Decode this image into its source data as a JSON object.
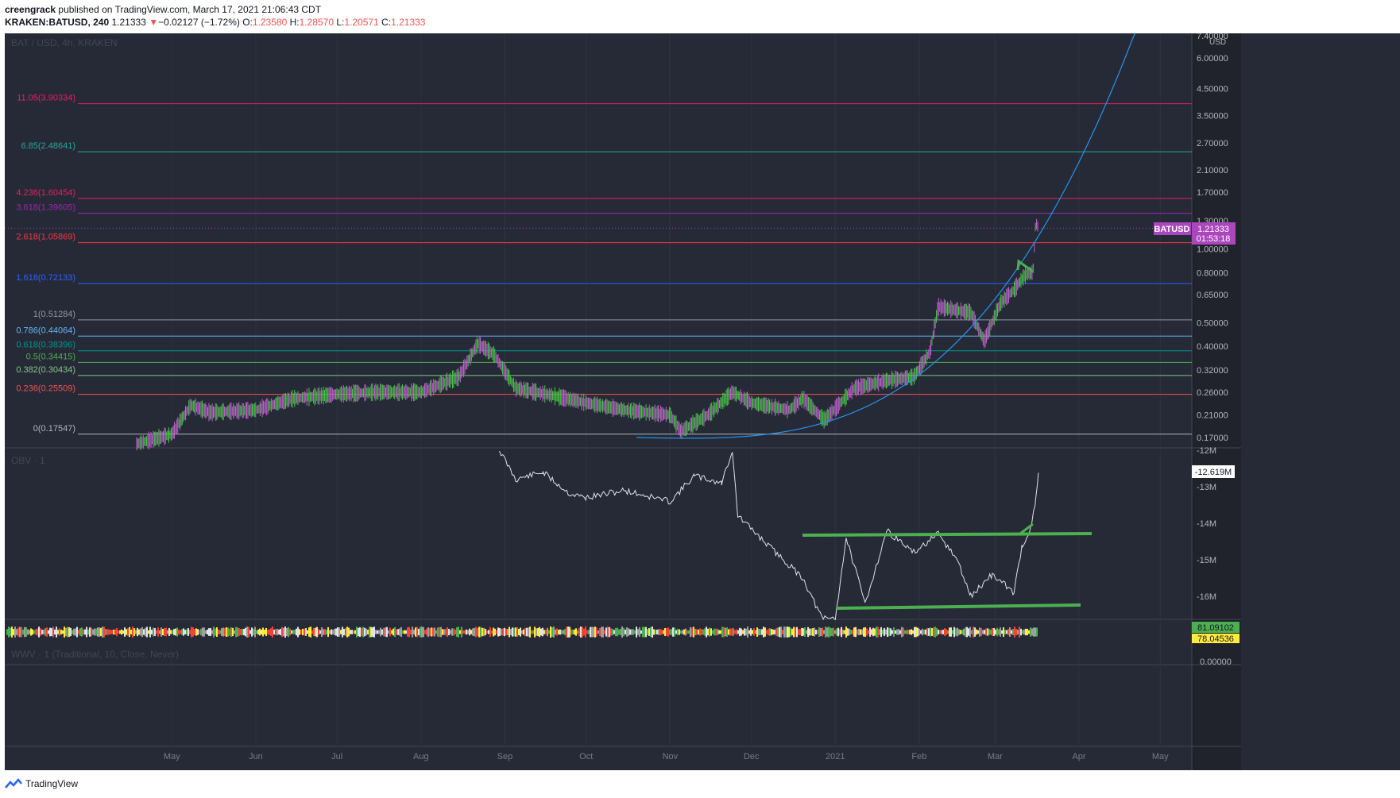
{
  "header": {
    "author": "creengrack",
    "published": "published on TradingView.com, March 17, 2021 21:06:43 CDT",
    "symbol": "KRAKEN:BATUSD, 240",
    "last": "1.21333",
    "change_arrow": "▼",
    "change": "−0.02127 (−1.72%)",
    "o_label": "O:",
    "o": "1.23580",
    "h_label": "H:",
    "h": "1.28570",
    "l_label": "L:",
    "l": "1.20571",
    "c_label": "C:",
    "c": "1.21333"
  },
  "main_pane": {
    "legend": "BAT / USD, 4h, KRAKEN",
    "currency": "USD",
    "price_tag": {
      "symbol": "BATUSD",
      "price": "1.21333",
      "countdown": "01:53:18"
    },
    "colors": {
      "bg": "#262a36",
      "up": "#46c846",
      "down": "#c060d0",
      "curve": "#2196f3",
      "grid": "#363a45"
    }
  },
  "obv_pane": {
    "legend": "OBV · 1",
    "last_label": "-12.619M"
  },
  "wwv_pane": {
    "legend": "WWV · 1 (Traditional, 10, Close, Never)",
    "label_a": "81.09102",
    "label_b": "78.04536",
    "label_c": "0.00000"
  },
  "footer": {
    "brand": "TradingView"
  },
  "chart_data": [
    {
      "type": "line",
      "title": "BAT / USD, 4h, KRAKEN",
      "scale": "log",
      "x_tick_labels": [
        "May",
        "Jun",
        "Jul",
        "Aug",
        "Sep",
        "Oct",
        "Nov",
        "Dec",
        "2021",
        "Feb",
        "Mar",
        "Apr",
        "May"
      ],
      "y_tick_labels": [
        "7.40000",
        "6.00000",
        "4.50000",
        "3.50000",
        "2.70000",
        "2.10000",
        "1.70000",
        "1.30000",
        "1.00000",
        "0.80000",
        "0.65000",
        "0.50000",
        "0.40000",
        "0.32000",
        "0.26000",
        "0.21000",
        "0.17000"
      ],
      "y_ticks": [
        7.4,
        6.0,
        4.5,
        3.5,
        2.7,
        2.1,
        1.7,
        1.3,
        1.0,
        0.8,
        0.65,
        0.5,
        0.4,
        0.32,
        0.26,
        0.21,
        0.17
      ],
      "series": [
        {
          "values": [
            [
              "2020-04-18",
              0.16
            ],
            [
              "2020-05-01",
              0.175
            ],
            [
              "2020-05-08",
              0.23
            ],
            [
              "2020-05-15",
              0.215
            ],
            [
              "2020-06-01",
              0.22
            ],
            [
              "2020-06-15",
              0.245
            ],
            [
              "2020-07-01",
              0.255
            ],
            [
              "2020-07-15",
              0.26
            ],
            [
              "2020-08-01",
              0.26
            ],
            [
              "2020-08-15",
              0.3
            ],
            [
              "2020-08-22",
              0.41
            ],
            [
              "2020-08-28",
              0.37
            ],
            [
              "2020-09-05",
              0.27
            ],
            [
              "2020-09-20",
              0.25
            ],
            [
              "2020-10-01",
              0.235
            ],
            [
              "2020-10-15",
              0.22
            ],
            [
              "2020-11-01",
              0.21
            ],
            [
              "2020-11-05",
              0.18
            ],
            [
              "2020-11-15",
              0.21
            ],
            [
              "2020-11-24",
              0.26
            ],
            [
              "2020-12-01",
              0.235
            ],
            [
              "2020-12-15",
              0.22
            ],
            [
              "2020-12-20",
              0.245
            ],
            [
              "2020-12-28",
              0.2
            ],
            [
              "2021-01-08",
              0.27
            ],
            [
              "2021-01-20",
              0.29
            ],
            [
              "2021-01-30",
              0.3
            ],
            [
              "2021-02-05",
              0.38
            ],
            [
              "2021-02-08",
              0.58
            ],
            [
              "2021-02-15",
              0.56
            ],
            [
              "2021-02-20",
              0.55
            ],
            [
              "2021-02-25",
              0.42
            ],
            [
              "2021-03-03",
              0.6
            ],
            [
              "2021-03-08",
              0.68
            ],
            [
              "2021-03-12",
              0.78
            ],
            [
              "2021-03-15",
              0.8
            ],
            [
              "2021-03-16",
              1.28
            ],
            [
              "2021-03-17",
              1.21333
            ]
          ]
        }
      ],
      "horizontal_levels": [
        {
          "label": "0(0.17547)",
          "value": 0.17547,
          "color": "#b2b5be"
        },
        {
          "label": "0.236(0.25509)",
          "value": 0.25509,
          "color": "#ef5350"
        },
        {
          "label": "0.382(0.30434)",
          "value": 0.30434,
          "color": "#81c784"
        },
        {
          "label": "0.5(0.34415)",
          "value": 0.34415,
          "color": "#4caf50"
        },
        {
          "label": "0.618(0.38396)",
          "value": 0.38396,
          "color": "#009688"
        },
        {
          "label": "0.786(0.44064)",
          "value": 0.44064,
          "color": "#64b5f6"
        },
        {
          "label": "1(0.51284)",
          "value": 0.51284,
          "color": "#9598a1"
        },
        {
          "label": "1.618(0.72133)",
          "value": 0.72133,
          "color": "#2962ff"
        },
        {
          "label": "2.618(1.05869)",
          "value": 1.05869,
          "color": "#f23645"
        },
        {
          "label": "3.618(1.39605)",
          "value": 1.39605,
          "color": "#9c27b0"
        },
        {
          "label": "4.236(1.60454)",
          "value": 1.60454,
          "color": "#e91e63"
        },
        {
          "label": "6.85(2.48641)",
          "value": 2.48641,
          "color": "#26a69a"
        },
        {
          "label": "11.05(3.90334)",
          "value": 3.90334,
          "color": "#e91e63"
        }
      ]
    },
    {
      "type": "line",
      "title": "OBV · 1",
      "y_tick_labels": [
        "-12M",
        "-13M",
        "-14M",
        "-15M",
        "-16M"
      ],
      "y_ticks": [
        -12,
        -13,
        -14,
        -15,
        -16
      ],
      "series": [
        {
          "values": [
            [
              "2020-08-30",
              -12.0
            ],
            [
              "2020-09-05",
              -12.8
            ],
            [
              "2020-09-15",
              -12.6
            ],
            [
              "2020-09-25",
              -13.2
            ],
            [
              "2020-10-01",
              -13.3
            ],
            [
              "2020-10-15",
              -13.1
            ],
            [
              "2020-11-01",
              -13.4
            ],
            [
              "2020-11-10",
              -12.7
            ],
            [
              "2020-11-20",
              -12.9
            ],
            [
              "2020-11-24",
              -12.0
            ],
            [
              "2020-11-26",
              -13.8
            ],
            [
              "2020-12-10",
              -14.8
            ],
            [
              "2020-12-20",
              -15.5
            ],
            [
              "2020-12-27",
              -16.6
            ],
            [
              "2021-01-01",
              -16.6
            ],
            [
              "2021-01-05",
              -14.4
            ],
            [
              "2021-01-12",
              -16.2
            ],
            [
              "2021-01-20",
              -14.2
            ],
            [
              "2021-01-30",
              -14.8
            ],
            [
              "2021-02-08",
              -14.3
            ],
            [
              "2021-02-15",
              -15.0
            ],
            [
              "2021-02-20",
              -16.0
            ],
            [
              "2021-02-28",
              -15.4
            ],
            [
              "2021-03-08",
              -15.9
            ],
            [
              "2021-03-11",
              -14.6
            ],
            [
              "2021-03-14",
              -14.2
            ],
            [
              "2021-03-16",
              -13.4
            ],
            [
              "2021-03-17",
              -12.619
            ]
          ]
        }
      ]
    }
  ]
}
